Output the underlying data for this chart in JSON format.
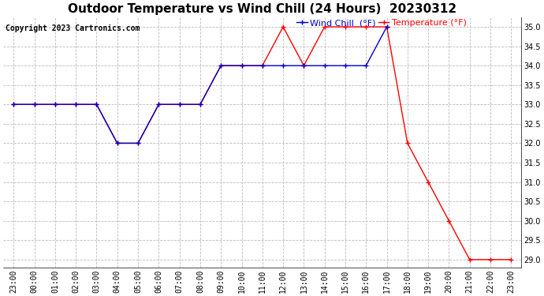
{
  "title": "Outdoor Temperature vs Wind Chill (24 Hours)  20230312",
  "copyright": "Copyright 2023 Cartronics.com",
  "legend_wind_chill": "Wind Chill  (°F)",
  "legend_temperature": "Temperature (°F)",
  "x_labels": [
    "23:00",
    "00:00",
    "01:00",
    "02:00",
    "03:00",
    "04:00",
    "05:00",
    "06:00",
    "07:00",
    "08:00",
    "09:00",
    "10:00",
    "11:00",
    "12:00",
    "13:00",
    "14:00",
    "15:00",
    "16:00",
    "17:00",
    "18:00",
    "19:00",
    "20:00",
    "21:00",
    "22:00",
    "23:00"
  ],
  "temperature_x": [
    0,
    1,
    2,
    3,
    4,
    5,
    6,
    7,
    8,
    9,
    10,
    11,
    12,
    13,
    14,
    15,
    16,
    17,
    18,
    19,
    20,
    21,
    22,
    23,
    24
  ],
  "temperature_y": [
    33.0,
    33.0,
    33.0,
    33.0,
    33.0,
    32.0,
    32.0,
    33.0,
    33.0,
    33.0,
    34.0,
    34.0,
    34.0,
    35.0,
    34.0,
    35.0,
    35.0,
    35.0,
    35.0,
    32.0,
    31.0,
    30.0,
    29.0,
    29.0,
    29.0
  ],
  "wind_chill_x": [
    0,
    1,
    2,
    3,
    4,
    5,
    6,
    7,
    8,
    9,
    10,
    11,
    12,
    13,
    14,
    15,
    16,
    17,
    18
  ],
  "wind_chill_y": [
    33.0,
    33.0,
    33.0,
    33.0,
    33.0,
    32.0,
    32.0,
    33.0,
    33.0,
    33.0,
    34.0,
    34.0,
    34.0,
    34.0,
    34.0,
    34.0,
    34.0,
    34.0,
    35.0
  ],
  "temp_color": "#FF0000",
  "wind_color": "#0000CC",
  "ylim_min": 28.8,
  "ylim_max": 35.25,
  "yticks": [
    29.0,
    29.5,
    30.0,
    30.5,
    31.0,
    31.5,
    32.0,
    32.5,
    33.0,
    33.5,
    34.0,
    34.5,
    35.0
  ],
  "bg_color": "#FFFFFF",
  "grid_color": "#BBBBBB",
  "title_fontsize": 11,
  "copyright_fontsize": 7,
  "legend_fontsize": 8,
  "tick_fontsize": 7
}
